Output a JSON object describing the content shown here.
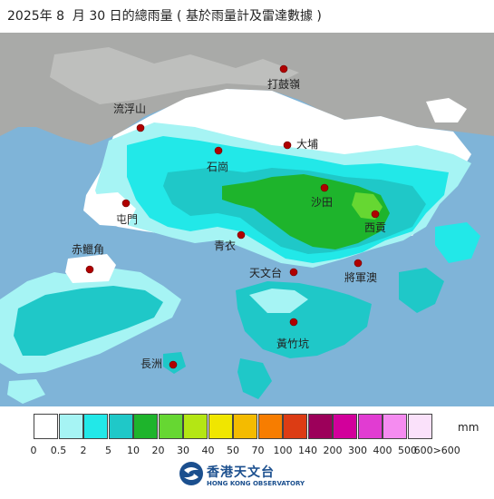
{
  "title": "2025年 8  月 30 日的總雨量 ( 基於雨量計及雷達數據 )",
  "stations": [
    {
      "name": "打鼓嶺"
    },
    {
      "name": "流浮山"
    },
    {
      "name": "石崗"
    },
    {
      "name": "大埔"
    },
    {
      "name": "屯門"
    },
    {
      "name": "沙田"
    },
    {
      "name": "西貢"
    },
    {
      "name": "青衣"
    },
    {
      "name": "赤鱲角"
    },
    {
      "name": "天文台"
    },
    {
      "name": "將軍澳"
    },
    {
      "name": "黃竹坑"
    },
    {
      "name": "長洲"
    }
  ],
  "legend": {
    "unit": "mm",
    "ticks": [
      "0",
      "0.5",
      "2",
      "5",
      "10",
      "20",
      "30",
      "40",
      "50",
      "70",
      "100",
      "140",
      "200",
      "300",
      "400",
      "500",
      "600>600"
    ],
    "colors": [
      "#ffffff",
      "#a6f4f4",
      "#22e8e8",
      "#1fc8c8",
      "#1eb42c",
      "#66d732",
      "#b4e614",
      "#f0e600",
      "#f4bb00",
      "#f77d00",
      "#dc3c14",
      "#9c005a",
      "#d2009b",
      "#e13cd2",
      "#f58cf0",
      "#fae1fa"
    ]
  },
  "logo": {
    "name_cn": "香港天文台",
    "name_en": "HONG KONG OBSERVATORY"
  }
}
